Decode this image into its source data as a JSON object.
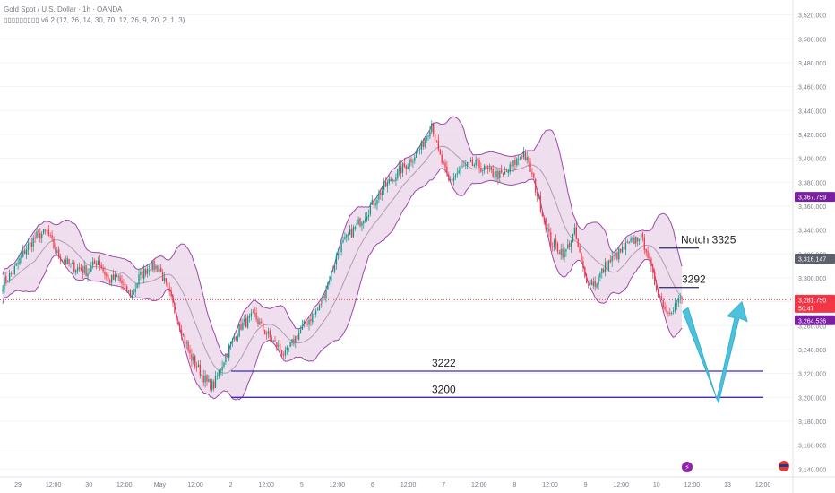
{
  "header": {
    "symbol_line": "Gold Spot / U.S. Dollar · 1h · OANDA",
    "indicator_line": "▯▯▯▯▯▯▯▯▯ v6.2 (12, 26, 14, 30, 70, 12, 26, 9, 20, 2, 1, 3)"
  },
  "chart_data": {
    "type": "candlestick",
    "instrument": "Gold Spot / U.S. Dollar",
    "timeframe": "1h",
    "source": "OANDA",
    "y_ticks": [
      3140,
      3160,
      3180,
      3200,
      3220,
      3240,
      3260,
      3280,
      3300,
      3320,
      3340,
      3360,
      3380,
      3400,
      3420,
      3440,
      3460,
      3480,
      3500,
      3520
    ],
    "ylim": [
      3135,
      3525
    ],
    "x_ticks": [
      "29",
      "12:00",
      "30",
      "12:00",
      "May",
      "12:00",
      "2",
      "12:00",
      "5",
      "12:00",
      "6",
      "12:00",
      "7",
      "12:00",
      "8",
      "12:00",
      "9",
      "12:00",
      "10",
      "12:00",
      "13",
      "12:00"
    ],
    "price_anchors": [
      [
        0,
        3295
      ],
      [
        6,
        3305
      ],
      [
        14,
        3325
      ],
      [
        20,
        3335
      ],
      [
        26,
        3338
      ],
      [
        32,
        3320
      ],
      [
        40,
        3310
      ],
      [
        50,
        3305
      ],
      [
        56,
        3315
      ],
      [
        62,
        3298
      ],
      [
        68,
        3300
      ],
      [
        72,
        3290
      ],
      [
        76,
        3285
      ],
      [
        80,
        3300
      ],
      [
        86,
        3310
      ],
      [
        92,
        3308
      ],
      [
        98,
        3285
      ],
      [
        104,
        3260
      ],
      [
        110,
        3235
      ],
      [
        116,
        3222
      ],
      [
        120,
        3212
      ],
      [
        124,
        3210
      ],
      [
        128,
        3225
      ],
      [
        134,
        3245
      ],
      [
        140,
        3260
      ],
      [
        148,
        3268
      ],
      [
        154,
        3255
      ],
      [
        160,
        3245
      ],
      [
        166,
        3235
      ],
      [
        172,
        3250
      ],
      [
        178,
        3262
      ],
      [
        186,
        3275
      ],
      [
        192,
        3300
      ],
      [
        198,
        3325
      ],
      [
        206,
        3340
      ],
      [
        214,
        3355
      ],
      [
        222,
        3372
      ],
      [
        230,
        3385
      ],
      [
        238,
        3396
      ],
      [
        246,
        3410
      ],
      [
        252,
        3430
      ],
      [
        256,
        3405
      ],
      [
        262,
        3380
      ],
      [
        270,
        3392
      ],
      [
        278,
        3395
      ],
      [
        286,
        3388
      ],
      [
        294,
        3385
      ],
      [
        300,
        3395
      ],
      [
        306,
        3405
      ],
      [
        310,
        3390
      ],
      [
        316,
        3360
      ],
      [
        322,
        3330
      ],
      [
        330,
        3320
      ],
      [
        336,
        3338
      ],
      [
        342,
        3300
      ],
      [
        348,
        3295
      ],
      [
        354,
        3310
      ],
      [
        360,
        3318
      ],
      [
        366,
        3326
      ],
      [
        370,
        3330
      ],
      [
        374,
        3335
      ],
      [
        378,
        3325
      ],
      [
        382,
        3300
      ],
      [
        386,
        3285
      ],
      [
        390,
        3272
      ],
      [
        394,
        3276
      ],
      [
        398,
        3282
      ]
    ],
    "bollinger": {
      "period": 20,
      "std_dev": 2
    },
    "levels": [
      {
        "label": "3222",
        "price": 3222,
        "color": "#3b2bbf"
      },
      {
        "label": "3200",
        "price": 3200,
        "color": "#3b2bbf"
      }
    ],
    "annotations": [
      {
        "label": "Notch 3325",
        "price": 3325
      },
      {
        "label": "3292",
        "price": 3292
      }
    ],
    "price_labels": [
      {
        "value": "3,367.759",
        "price": 3367.759,
        "bg": "#7b1fa2"
      },
      {
        "value": "3,316.147",
        "price": 3316.147,
        "bg": "#5d606b"
      },
      {
        "value": "3,281.750",
        "price": 3281.75,
        "bg": "#f23645",
        "sub": "50:47"
      },
      {
        "value": "3,264.536",
        "price": 3264.536,
        "bg": "#7b1fa2"
      }
    ],
    "current_price": 3281.75,
    "countdown": "50:47",
    "projection": {
      "from": 3275,
      "low": 3212,
      "to": 3265
    },
    "colors": {
      "up": "#089981",
      "down": "#f23645",
      "band_fill": "#e8d3e8",
      "band_line": "#9c4aa6",
      "basis": "#b59ab2",
      "arrow": "#4cc3dc",
      "level": "#3b2bbf"
    }
  }
}
